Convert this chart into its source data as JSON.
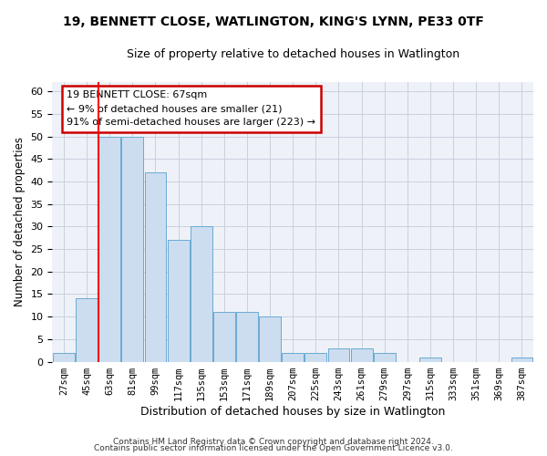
{
  "title1": "19, BENNETT CLOSE, WATLINGTON, KING'S LYNN, PE33 0TF",
  "title2": "Size of property relative to detached houses in Watlington",
  "xlabel": "Distribution of detached houses by size in Watlington",
  "ylabel": "Number of detached properties",
  "categories": [
    "27sqm",
    "45sqm",
    "63sqm",
    "81sqm",
    "99sqm",
    "117sqm",
    "135sqm",
    "153sqm",
    "171sqm",
    "189sqm",
    "207sqm",
    "225sqm",
    "243sqm",
    "261sqm",
    "279sqm",
    "297sqm",
    "315sqm",
    "333sqm",
    "351sqm",
    "369sqm",
    "387sqm"
  ],
  "values": [
    2,
    14,
    50,
    50,
    42,
    27,
    30,
    11,
    11,
    10,
    2,
    2,
    3,
    3,
    2,
    0,
    1,
    0,
    0,
    0,
    1
  ],
  "bar_color": "#ccddf0",
  "bar_edge_color": "#6aaad4",
  "red_line_index": 2,
  "annotation_title": "19 BENNETT CLOSE: 67sqm",
  "annotation_line1": "← 9% of detached houses are smaller (21)",
  "annotation_line2": "91% of semi-detached houses are larger (223) →",
  "annotation_box_color": "#ffffff",
  "annotation_box_edge": "#cc0000",
  "footer1": "Contains HM Land Registry data © Crown copyright and database right 2024.",
  "footer2": "Contains public sector information licensed under the Open Government Licence v3.0.",
  "ylim": [
    0,
    62
  ],
  "yticks": [
    0,
    5,
    10,
    15,
    20,
    25,
    30,
    35,
    40,
    45,
    50,
    55,
    60
  ],
  "background_color": "#eef2f8",
  "grid_color": "#c8d0de"
}
